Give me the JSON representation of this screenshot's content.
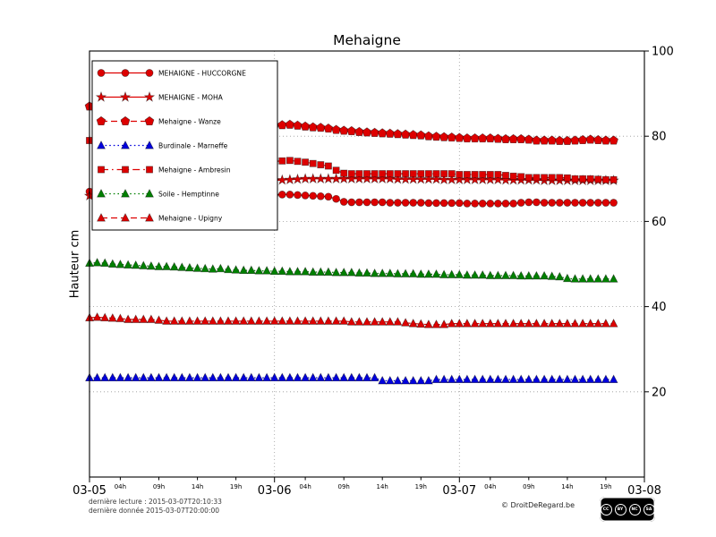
{
  "chart_data": {
    "type": "line",
    "title": "Mehaigne",
    "ylabel": "Hauteur cm",
    "ylim": [
      0,
      100
    ],
    "yticks": [
      20,
      40,
      60,
      80,
      100
    ],
    "x_total_hours": 72,
    "grid_hlines": [
      20,
      40,
      60,
      80
    ],
    "grid_vlines_t": [
      24,
      48
    ],
    "day_ticks": [
      {
        "t": 0,
        "label": "03-05"
      },
      {
        "t": 24,
        "label": "03-06"
      },
      {
        "t": 48,
        "label": "03-07"
      },
      {
        "t": 72,
        "label": "03-08"
      }
    ],
    "hour_ticks": [
      {
        "t": 4,
        "label": "04h"
      },
      {
        "t": 9,
        "label": "09h"
      },
      {
        "t": 14,
        "label": "14h"
      },
      {
        "t": 19,
        "label": "19h"
      },
      {
        "t": 28,
        "label": "04h"
      },
      {
        "t": 33,
        "label": "09h"
      },
      {
        "t": 38,
        "label": "14h"
      },
      {
        "t": 43,
        "label": "19h"
      },
      {
        "t": 52,
        "label": "04h"
      },
      {
        "t": 57,
        "label": "09h"
      },
      {
        "t": 62,
        "label": "14h"
      },
      {
        "t": 67,
        "label": "19h"
      }
    ],
    "series": [
      {
        "id": "huccorgne",
        "name": "MEHAIGNE - HUCCORGNE",
        "color": "#dd0000",
        "marker": "circle",
        "linestyle": "solid",
        "values": [
          67.0,
          66.9,
          66.8,
          66.8,
          66.7,
          66.7,
          66.6,
          66.6,
          66.5,
          66.5,
          66.4,
          66.4,
          66.3,
          66.3,
          66.2,
          66.2,
          66.2,
          66.1,
          66.1,
          66.1,
          66.0,
          66.0,
          66.0,
          66.0,
          66.2,
          66.3,
          66.3,
          66.2,
          66.1,
          66.0,
          65.9,
          65.8,
          65.3,
          64.6,
          64.5,
          64.5,
          64.5,
          64.5,
          64.5,
          64.4,
          64.4,
          64.4,
          64.4,
          64.4,
          64.3,
          64.3,
          64.3,
          64.3,
          64.3,
          64.2,
          64.2,
          64.2,
          64.2,
          64.2,
          64.2,
          64.2,
          64.4,
          64.5,
          64.5,
          64.4,
          64.4,
          64.4,
          64.4,
          64.4,
          64.4,
          64.4,
          64.4,
          64.4,
          64.4
        ]
      },
      {
        "id": "moha",
        "name": "MEHAIGNE - MOHA",
        "color": "#dd0000",
        "marker": "star",
        "linestyle": "solid",
        "values": [
          66.0,
          66.2,
          66.4,
          66.6,
          66.8,
          67.0,
          67.2,
          67.4,
          67.6,
          67.8,
          68.0,
          68.2,
          68.4,
          68.6,
          68.8,
          69.0,
          69.1,
          69.2,
          69.3,
          69.4,
          69.5,
          69.5,
          69.5,
          69.5,
          69.6,
          69.7,
          69.8,
          69.9,
          70.0,
          70.0,
          70.0,
          70.0,
          70.0,
          70.0,
          70.0,
          70.0,
          70.0,
          70.0,
          70.0,
          70.0,
          69.9,
          69.9,
          69.9,
          69.9,
          69.9,
          69.9,
          69.8,
          69.8,
          69.8,
          69.8,
          69.8,
          69.8,
          69.8,
          69.8,
          69.7,
          69.7,
          69.7,
          69.7,
          69.7,
          69.6,
          69.6,
          69.6,
          69.6,
          69.6,
          69.6,
          69.6,
          69.6,
          69.6,
          69.6
        ]
      },
      {
        "id": "wanze",
        "name": "Mehaigne - Wanze",
        "color": "#dd0000",
        "marker": "pentagon",
        "linestyle": "dashed",
        "values": [
          87.0,
          86.7,
          86.4,
          86.1,
          85.8,
          85.5,
          85.2,
          84.9,
          84.6,
          84.3,
          84.0,
          83.8,
          83.6,
          83.4,
          83.2,
          83.0,
          82.9,
          82.8,
          82.7,
          82.6,
          82.6,
          82.5,
          82.5,
          82.5,
          82.5,
          82.6,
          82.7,
          82.5,
          82.3,
          82.1,
          82.0,
          81.8,
          81.5,
          81.3,
          81.2,
          81.0,
          80.9,
          80.8,
          80.7,
          80.6,
          80.5,
          80.4,
          80.3,
          80.2,
          80.0,
          79.9,
          79.8,
          79.7,
          79.6,
          79.5,
          79.5,
          79.5,
          79.5,
          79.4,
          79.3,
          79.3,
          79.3,
          79.2,
          79.0,
          79.0,
          79.0,
          78.9,
          78.9,
          79.0,
          79.1,
          79.2,
          79.1,
          79.0,
          79.0
        ]
      },
      {
        "id": "marneffe",
        "name": "Burdinale - Marneffe",
        "color": "#0000dd",
        "marker": "triangle",
        "linestyle": "dotted",
        "values": [
          23.3,
          23.3,
          23.3,
          23.3,
          23.3,
          23.3,
          23.3,
          23.3,
          23.3,
          23.3,
          23.3,
          23.3,
          23.3,
          23.3,
          23.3,
          23.3,
          23.3,
          23.3,
          23.3,
          23.3,
          23.3,
          23.3,
          23.3,
          23.3,
          23.3,
          23.3,
          23.3,
          23.3,
          23.3,
          23.3,
          23.3,
          23.3,
          23.3,
          23.3,
          23.3,
          23.3,
          23.3,
          23.3,
          22.6,
          22.6,
          22.6,
          22.6,
          22.6,
          22.6,
          22.6,
          22.9,
          22.9,
          22.9,
          22.9,
          22.9,
          22.9,
          22.9,
          22.9,
          22.9,
          22.9,
          22.9,
          22.9,
          22.9,
          22.9,
          22.9,
          22.9,
          22.9,
          22.9,
          22.9,
          22.9,
          22.9,
          22.9,
          22.9,
          22.9
        ]
      },
      {
        "id": "ambresin",
        "name": "Mehaigne - Ambresin",
        "color": "#dd0000",
        "marker": "square",
        "linestyle": "dashdot",
        "values": [
          79.0,
          78.7,
          78.4,
          78.1,
          77.8,
          77.5,
          77.2,
          76.9,
          76.6,
          76.3,
          76.0,
          75.8,
          75.6,
          75.4,
          75.2,
          75.0,
          74.9,
          74.8,
          74.7,
          74.6,
          74.5,
          74.4,
          74.3,
          74.2,
          74.1,
          74.2,
          74.3,
          74.1,
          73.9,
          73.6,
          73.3,
          73.0,
          72.0,
          71.3,
          71.2,
          71.2,
          71.2,
          71.2,
          71.2,
          71.2,
          71.2,
          71.2,
          71.2,
          71.2,
          71.2,
          71.2,
          71.2,
          71.2,
          71.0,
          71.0,
          71.0,
          71.0,
          71.0,
          71.0,
          70.8,
          70.6,
          70.5,
          70.3,
          70.3,
          70.3,
          70.3,
          70.3,
          70.2,
          70.0,
          70.0,
          70.0,
          69.9,
          69.8,
          69.8
        ]
      },
      {
        "id": "hemptinne",
        "name": "Soile - Hemptinne",
        "color": "#008000",
        "marker": "triangle",
        "linestyle": "dotted",
        "values": [
          50.2,
          50.3,
          50.2,
          50.0,
          49.9,
          49.8,
          49.7,
          49.6,
          49.5,
          49.4,
          49.4,
          49.3,
          49.2,
          49.1,
          49.0,
          48.9,
          48.8,
          48.9,
          48.7,
          48.6,
          48.5,
          48.5,
          48.4,
          48.4,
          48.3,
          48.3,
          48.2,
          48.2,
          48.2,
          48.1,
          48.1,
          48.1,
          48.0,
          48.0,
          48.0,
          47.9,
          47.9,
          47.8,
          47.8,
          47.8,
          47.7,
          47.7,
          47.7,
          47.6,
          47.6,
          47.6,
          47.5,
          47.5,
          47.5,
          47.4,
          47.4,
          47.4,
          47.3,
          47.3,
          47.3,
          47.3,
          47.2,
          47.2,
          47.2,
          47.2,
          47.1,
          47.0,
          46.6,
          46.5,
          46.5,
          46.5,
          46.5,
          46.5,
          46.5
        ]
      },
      {
        "id": "upigny",
        "name": "Mehaigne - Upigny",
        "color": "#dd0000",
        "marker": "triangle",
        "linestyle": "dashed",
        "values": [
          37.4,
          37.5,
          37.4,
          37.3,
          37.2,
          37.0,
          37.0,
          37.0,
          37.0,
          36.8,
          36.6,
          36.6,
          36.6,
          36.6,
          36.6,
          36.6,
          36.6,
          36.6,
          36.6,
          36.6,
          36.6,
          36.6,
          36.6,
          36.6,
          36.6,
          36.6,
          36.6,
          36.6,
          36.6,
          36.6,
          36.6,
          36.6,
          36.6,
          36.6,
          36.4,
          36.4,
          36.4,
          36.4,
          36.4,
          36.4,
          36.4,
          36.2,
          36.0,
          35.9,
          35.8,
          35.8,
          35.8,
          36.0,
          36.0,
          36.0,
          36.0,
          36.0,
          36.0,
          36.0,
          36.0,
          36.0,
          36.0,
          36.0,
          36.0,
          36.0,
          36.0,
          36.0,
          36.0,
          36.0,
          36.0,
          36.0,
          36.0,
          36.0,
          36.0
        ]
      }
    ],
    "legend_position": "upper-left"
  },
  "footer": {
    "last_reading": "dernière lecture : 2015-03-07T20:10:33",
    "last_data": "dernière donnée  2015-03-07T20:00:00",
    "copyright": "© DroitDeRegard.be",
    "license": {
      "label": "CC BY-NC-SA",
      "parts": [
        "CC",
        "BY",
        "NC",
        "SA"
      ]
    }
  }
}
